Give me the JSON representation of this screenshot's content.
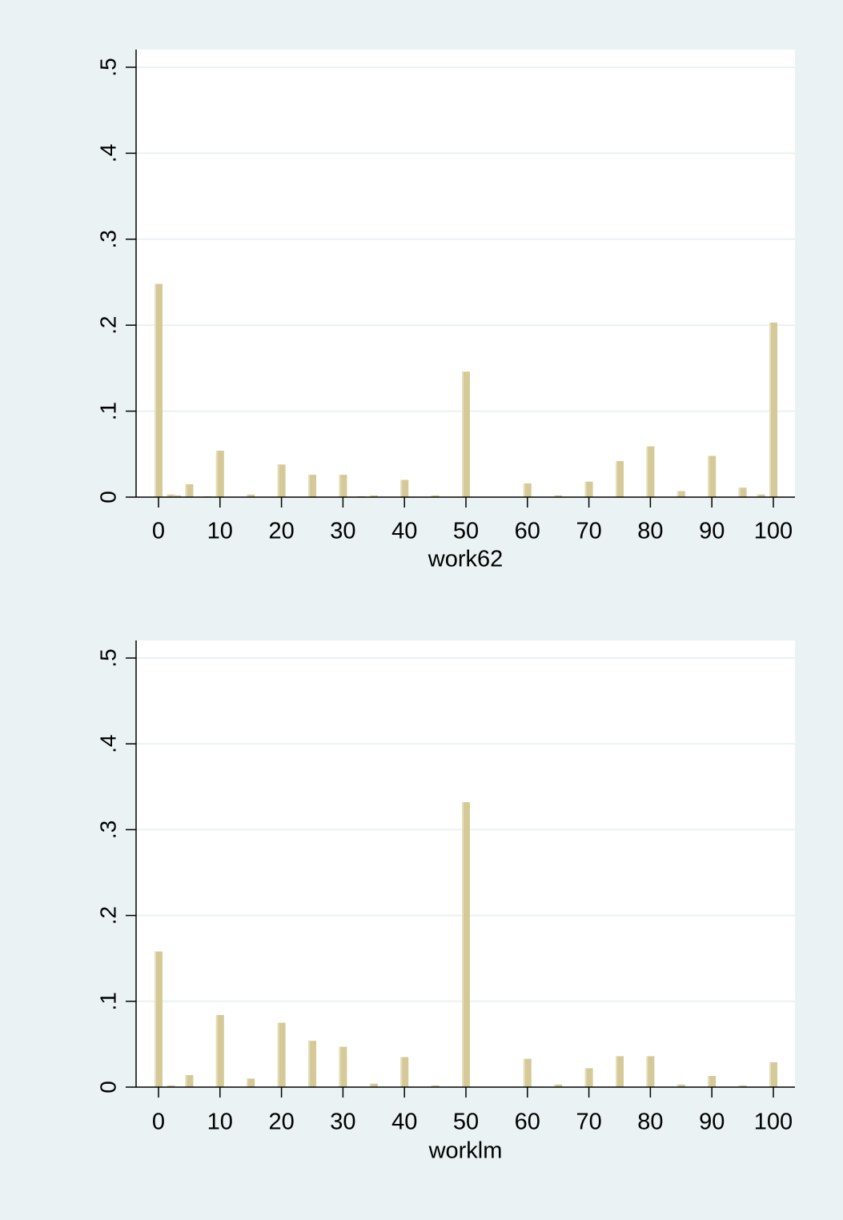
{
  "background_color": "#eaf2f3",
  "chart_data": [
    {
      "type": "bar",
      "xlabel": "work62",
      "ylabel": "",
      "xlim": [
        0,
        100
      ],
      "ylim": [
        0,
        0.5
      ],
      "xticks": [
        "0",
        "10",
        "20",
        "30",
        "40",
        "50",
        "60",
        "70",
        "80",
        "90",
        "100"
      ],
      "yticks": [
        "0",
        ".1",
        ".2",
        ".3",
        ".4",
        ".5"
      ],
      "grid": true,
      "bar_color": "#d4c997",
      "x": [
        0,
        2,
        3,
        5,
        8,
        10,
        15,
        20,
        25,
        30,
        33,
        35,
        40,
        45,
        50,
        60,
        65,
        70,
        75,
        80,
        85,
        90,
        95,
        98,
        100
      ],
      "values": [
        0.248,
        0.003,
        0.002,
        0.015,
        0.001,
        0.054,
        0.003,
        0.038,
        0.026,
        0.026,
        0.001,
        0.002,
        0.02,
        0.002,
        0.146,
        0.016,
        0.002,
        0.018,
        0.042,
        0.059,
        0.007,
        0.048,
        0.011,
        0.003,
        0.203
      ]
    },
    {
      "type": "bar",
      "xlabel": "worklm",
      "ylabel": "",
      "xlim": [
        0,
        100
      ],
      "ylim": [
        0,
        0.5
      ],
      "xticks": [
        "0",
        "10",
        "20",
        "30",
        "40",
        "50",
        "60",
        "70",
        "80",
        "90",
        "100"
      ],
      "yticks": [
        "0",
        ".1",
        ".2",
        ".3",
        ".4",
        ".5"
      ],
      "grid": true,
      "bar_color": "#d4c997",
      "x": [
        0,
        2,
        5,
        10,
        15,
        20,
        25,
        30,
        35,
        40,
        45,
        50,
        60,
        65,
        70,
        75,
        80,
        85,
        90,
        95,
        100
      ],
      "values": [
        0.158,
        0.002,
        0.014,
        0.084,
        0.01,
        0.075,
        0.054,
        0.047,
        0.004,
        0.035,
        0.002,
        0.332,
        0.033,
        0.003,
        0.022,
        0.036,
        0.036,
        0.003,
        0.013,
        0.002,
        0.029
      ]
    }
  ]
}
